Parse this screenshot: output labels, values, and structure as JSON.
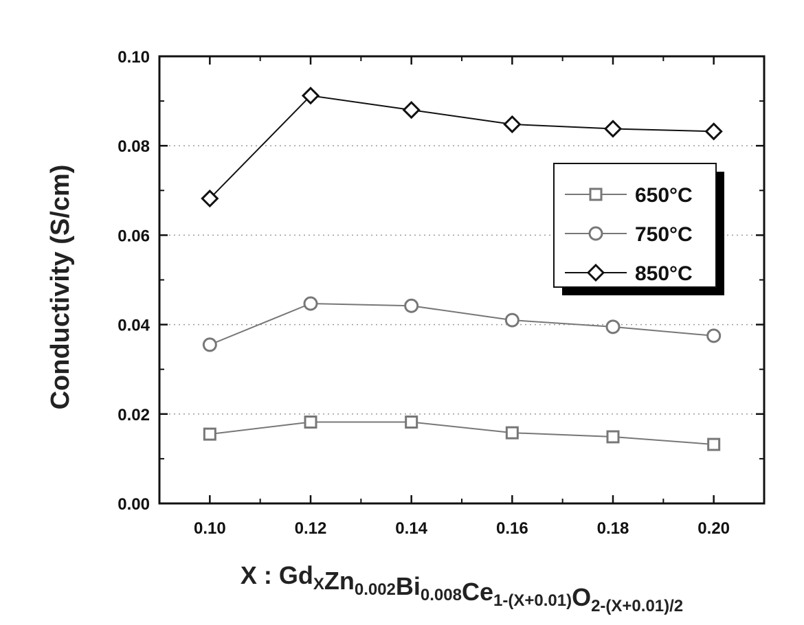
{
  "chart_data": {
    "type": "line",
    "title": "",
    "ylabel": "Conductivity (S/cm)",
    "xlabel": {
      "prefix": "X : ",
      "parts": [
        {
          "text": "Gd",
          "sub": "X"
        },
        {
          "text": "Zn",
          "sub": "0.002"
        },
        {
          "text": "Bi",
          "sub": "0.008"
        },
        {
          "text": "Ce",
          "sub": "1-(X+0.01)"
        },
        {
          "text": "O",
          "sub": "2-(X+0.01)/2"
        }
      ]
    },
    "x": [
      0.1,
      0.12,
      0.14,
      0.16,
      0.18,
      0.2
    ],
    "xlim": [
      0.09,
      0.21
    ],
    "ylim": [
      0.0,
      0.1
    ],
    "xticks": [
      "0.10",
      "0.12",
      "0.14",
      "0.16",
      "0.18",
      "0.20"
    ],
    "yticks": [
      "0.00",
      "0.02",
      "0.04",
      "0.06",
      "0.08",
      "0.10"
    ],
    "grid": "dotted horizontal",
    "legend_position": "upper-right",
    "series": [
      {
        "name": "650°C",
        "marker": "square",
        "color": "#777777",
        "values": [
          0.0155,
          0.0182,
          0.0182,
          0.0158,
          0.0149,
          0.0132
        ]
      },
      {
        "name": "750°C",
        "marker": "circle",
        "color": "#777777",
        "values": [
          0.0355,
          0.0447,
          0.0442,
          0.041,
          0.0395,
          0.0375
        ]
      },
      {
        "name": "850°C",
        "marker": "diamond",
        "color": "#111111",
        "values": [
          0.0682,
          0.0912,
          0.088,
          0.0848,
          0.0838,
          0.0832
        ]
      }
    ]
  }
}
